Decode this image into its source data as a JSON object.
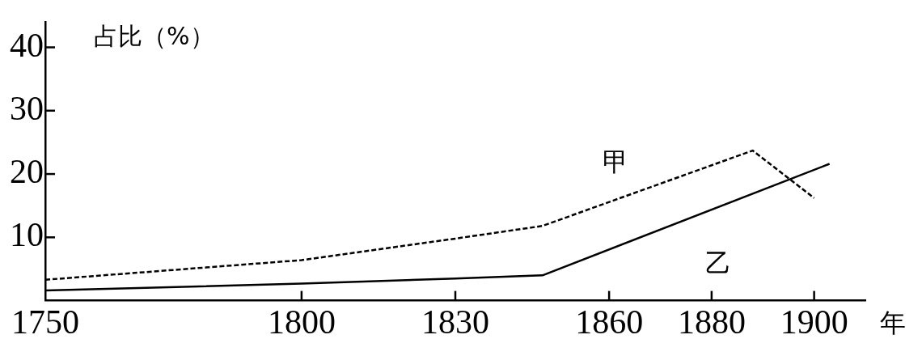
{
  "chart_data": {
    "type": "line",
    "xlabel": "年",
    "ylabel": "占比（%）",
    "xlim": [
      1750,
      1910
    ],
    "xticks": [
      1750,
      1800,
      1830,
      1860,
      1880,
      1900
    ],
    "ylim": [
      0,
      44
    ],
    "yticks": [
      10,
      20,
      30,
      40
    ],
    "grid": false,
    "legend": false,
    "marker": "none",
    "series": [
      {
        "name": "甲",
        "color": "#000000",
        "line_style": "dashed",
        "x": [
          1750,
          1800,
          1830,
          1847,
          1888,
          1900
        ],
        "values": [
          3.3,
          6.4,
          9.8,
          11.8,
          23.7,
          16.2
        ]
      },
      {
        "name": "乙",
        "color": "#000000",
        "line_style": "solid",
        "x": [
          1750,
          1800,
          1830,
          1847,
          1903
        ],
        "values": [
          1.6,
          2.7,
          3.5,
          4.0,
          21.6
        ]
      }
    ]
  }
}
